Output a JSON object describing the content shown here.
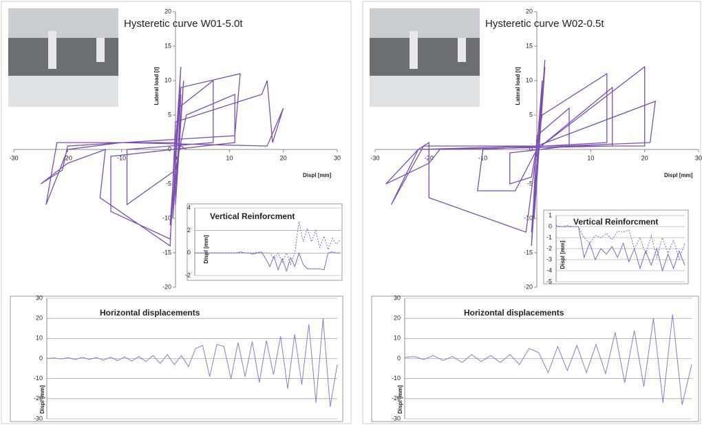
{
  "chart_data": [
    {
      "type": "line",
      "title": "Hysteretic curve W01-5.0t",
      "y_label": "Lateral load [t]",
      "x_label": "Displ [mm]",
      "xlim": [
        -30,
        30
      ],
      "ylim": [
        -20,
        20
      ],
      "xticks": [
        -30,
        -20,
        -10,
        0,
        10,
        20,
        30
      ],
      "yticks": [
        -20,
        -15,
        -10,
        -5,
        0,
        5,
        10,
        15,
        20
      ],
      "grid": false,
      "x": [
        0,
        1,
        0,
        1.5,
        -0.5,
        1,
        -1,
        0.5,
        7,
        7,
        -9,
        -9,
        0,
        2,
        11,
        11,
        -12,
        -12,
        -1,
        1,
        12,
        11,
        -20,
        -21,
        -25,
        -20,
        -13,
        -14,
        -1,
        0,
        16,
        17,
        18,
        20,
        17,
        -10,
        -20,
        -24,
        -22,
        0,
        2
      ],
      "series": [
        {
          "color": "#7a4fb0",
          "values": [
            0,
            8,
            -8,
            10,
            -10,
            12,
            -11,
            6,
            10,
            1,
            0,
            -8,
            -3,
            5,
            8,
            1,
            -1,
            -9,
            -13,
            9,
            11,
            2,
            0.5,
            -3,
            -5,
            -2,
            0,
            -7,
            -14,
            4,
            8,
            10,
            1,
            6,
            0.5,
            1,
            0,
            -8,
            1,
            1,
            0
          ]
        }
      ]
    },
    {
      "type": "line",
      "title": "Vertical Reinforcment",
      "y_label": "Displ [mm]",
      "ylim": [
        -2,
        4
      ],
      "yticks": [
        -2,
        0,
        2,
        4
      ],
      "grid": true,
      "series": [
        {
          "color": "#7a6cc0",
          "dashed": false,
          "values": [
            0,
            0,
            0,
            0,
            0,
            0,
            0,
            0,
            0,
            0,
            0,
            0.1,
            0,
            0,
            -0.1,
            0,
            0.1,
            -0.5,
            -1.2,
            -0.3,
            -1.5,
            -0.5,
            -1.6,
            -0.4,
            -1.2,
            0,
            -1,
            -1.4,
            -1.4,
            -1.4,
            -1.4,
            -1.5,
            0,
            0.1,
            0,
            0
          ]
        },
        {
          "color": "#7a6cc0",
          "dashed": true,
          "values": [
            0,
            0,
            0,
            0,
            0,
            0,
            0,
            0,
            0,
            0,
            0,
            0,
            0,
            0,
            0,
            0.1,
            0,
            0,
            0,
            -0.5,
            0,
            -0.8,
            0,
            -1,
            0,
            2.8,
            1,
            2.2,
            1,
            2,
            0.5,
            1.5,
            0.3,
            1.3,
            0.8,
            1.2
          ]
        }
      ]
    },
    {
      "type": "line",
      "title": "Horizontal displacements",
      "y_label": "Displ [mm]",
      "ylim": [
        -30,
        30
      ],
      "yticks": [
        -30,
        -20,
        -10,
        0,
        10,
        20,
        30
      ],
      "grid": true,
      "series": [
        {
          "color": "#8a7cc8",
          "dashed": false,
          "values": [
            0,
            0.3,
            -0.2,
            0.4,
            -0.5,
            0.6,
            -0.4,
            0.5,
            -0.8,
            0.7,
            -1,
            0.8,
            -1.2,
            1,
            -1.5,
            1.5,
            -2.5,
            2,
            -3,
            1.5,
            -4,
            5,
            6.5,
            -9,
            7,
            6,
            -10,
            8,
            -9,
            8.5,
            -12,
            9,
            -8,
            11,
            -15,
            12,
            -13,
            17,
            -22,
            20,
            -24,
            -3
          ]
        }
      ]
    },
    {
      "type": "line",
      "title": "Hysteretic curve W02-0.5t",
      "y_label": "Lateral load [t]",
      "x_label": "Displ [mm]",
      "xlim": [
        -30,
        30
      ],
      "ylim": [
        -20,
        20
      ],
      "xticks": [
        -30,
        -20,
        -10,
        0,
        10,
        20,
        30
      ],
      "yticks": [
        -20,
        -15,
        -10,
        -5,
        0,
        5,
        10,
        15,
        20
      ],
      "grid": false,
      "x": [
        0,
        1,
        -0.5,
        1.5,
        -1,
        1.5,
        -1,
        0,
        6,
        6,
        -5,
        -5,
        -1,
        1,
        13,
        13,
        -10,
        -11,
        -4,
        0,
        14,
        14,
        -18,
        -20,
        -28,
        -22,
        -20,
        -20,
        -2,
        0,
        20,
        20,
        -10,
        -21,
        -27,
        -22,
        0,
        22,
        21,
        5
      ],
      "series": [
        {
          "color": "#7a4fb0",
          "values": [
            0,
            10,
            -10,
            12,
            -12,
            13,
            -14,
            2,
            6,
            0.5,
            -0.5,
            -5,
            -4,
            5,
            11,
            1,
            0,
            -6,
            -6,
            0,
            9,
            0.5,
            0,
            -2,
            -5,
            0,
            1,
            -7,
            -12,
            0,
            12,
            0.5,
            0.5,
            0.5,
            -8,
            0,
            0.5,
            7,
            1,
            0.5
          ]
        }
      ]
    },
    {
      "type": "line",
      "title": "Vertical Reinforcment",
      "y_label": "Displ [mm]",
      "ylim": [
        -5,
        1
      ],
      "yticks": [
        -5,
        -4,
        -3,
        -2,
        -1,
        0,
        1
      ],
      "grid": true,
      "series": [
        {
          "color": "#7a6cc0",
          "dashed": false,
          "values": [
            0,
            0,
            0,
            0,
            0,
            -2.8,
            -1.5,
            -3,
            -2,
            -2.5,
            -1.8,
            -2.8,
            -1.5,
            -3.2,
            -2,
            -3.8,
            -2.2,
            -3.5,
            -2,
            -4,
            -2.5,
            -3.8,
            -2.2,
            -3.5
          ]
        },
        {
          "color": "#7a6cc0",
          "dashed": true,
          "values": [
            0.1,
            0,
            0.1,
            0,
            0,
            -1,
            -1.5,
            -0.8,
            -1,
            -0.6,
            -1.2,
            -0.4,
            -0.5,
            -0.3,
            -2,
            -1,
            -2.5,
            -0.8,
            -2.8,
            -1,
            -2.4,
            -1.2,
            -3,
            -1.5
          ]
        }
      ]
    },
    {
      "type": "line",
      "title": "Horizontal displacements",
      "y_label": "Displ [mm]",
      "ylim": [
        -30,
        30
      ],
      "yticks": [
        -30,
        -20,
        -10,
        0,
        10,
        20,
        30
      ],
      "grid": true,
      "series": [
        {
          "color": "#8a7cc8",
          "dashed": false,
          "values": [
            0.5,
            1,
            -0.5,
            1.5,
            -1,
            1,
            -2,
            2,
            -1.5,
            1.5,
            -2,
            2,
            -3,
            5,
            3,
            -7,
            6,
            -6,
            6.5,
            -7,
            7,
            -7.5,
            13,
            -12,
            14,
            -14,
            20,
            -22,
            22,
            -23,
            -3
          ]
        }
      ]
    }
  ]
}
